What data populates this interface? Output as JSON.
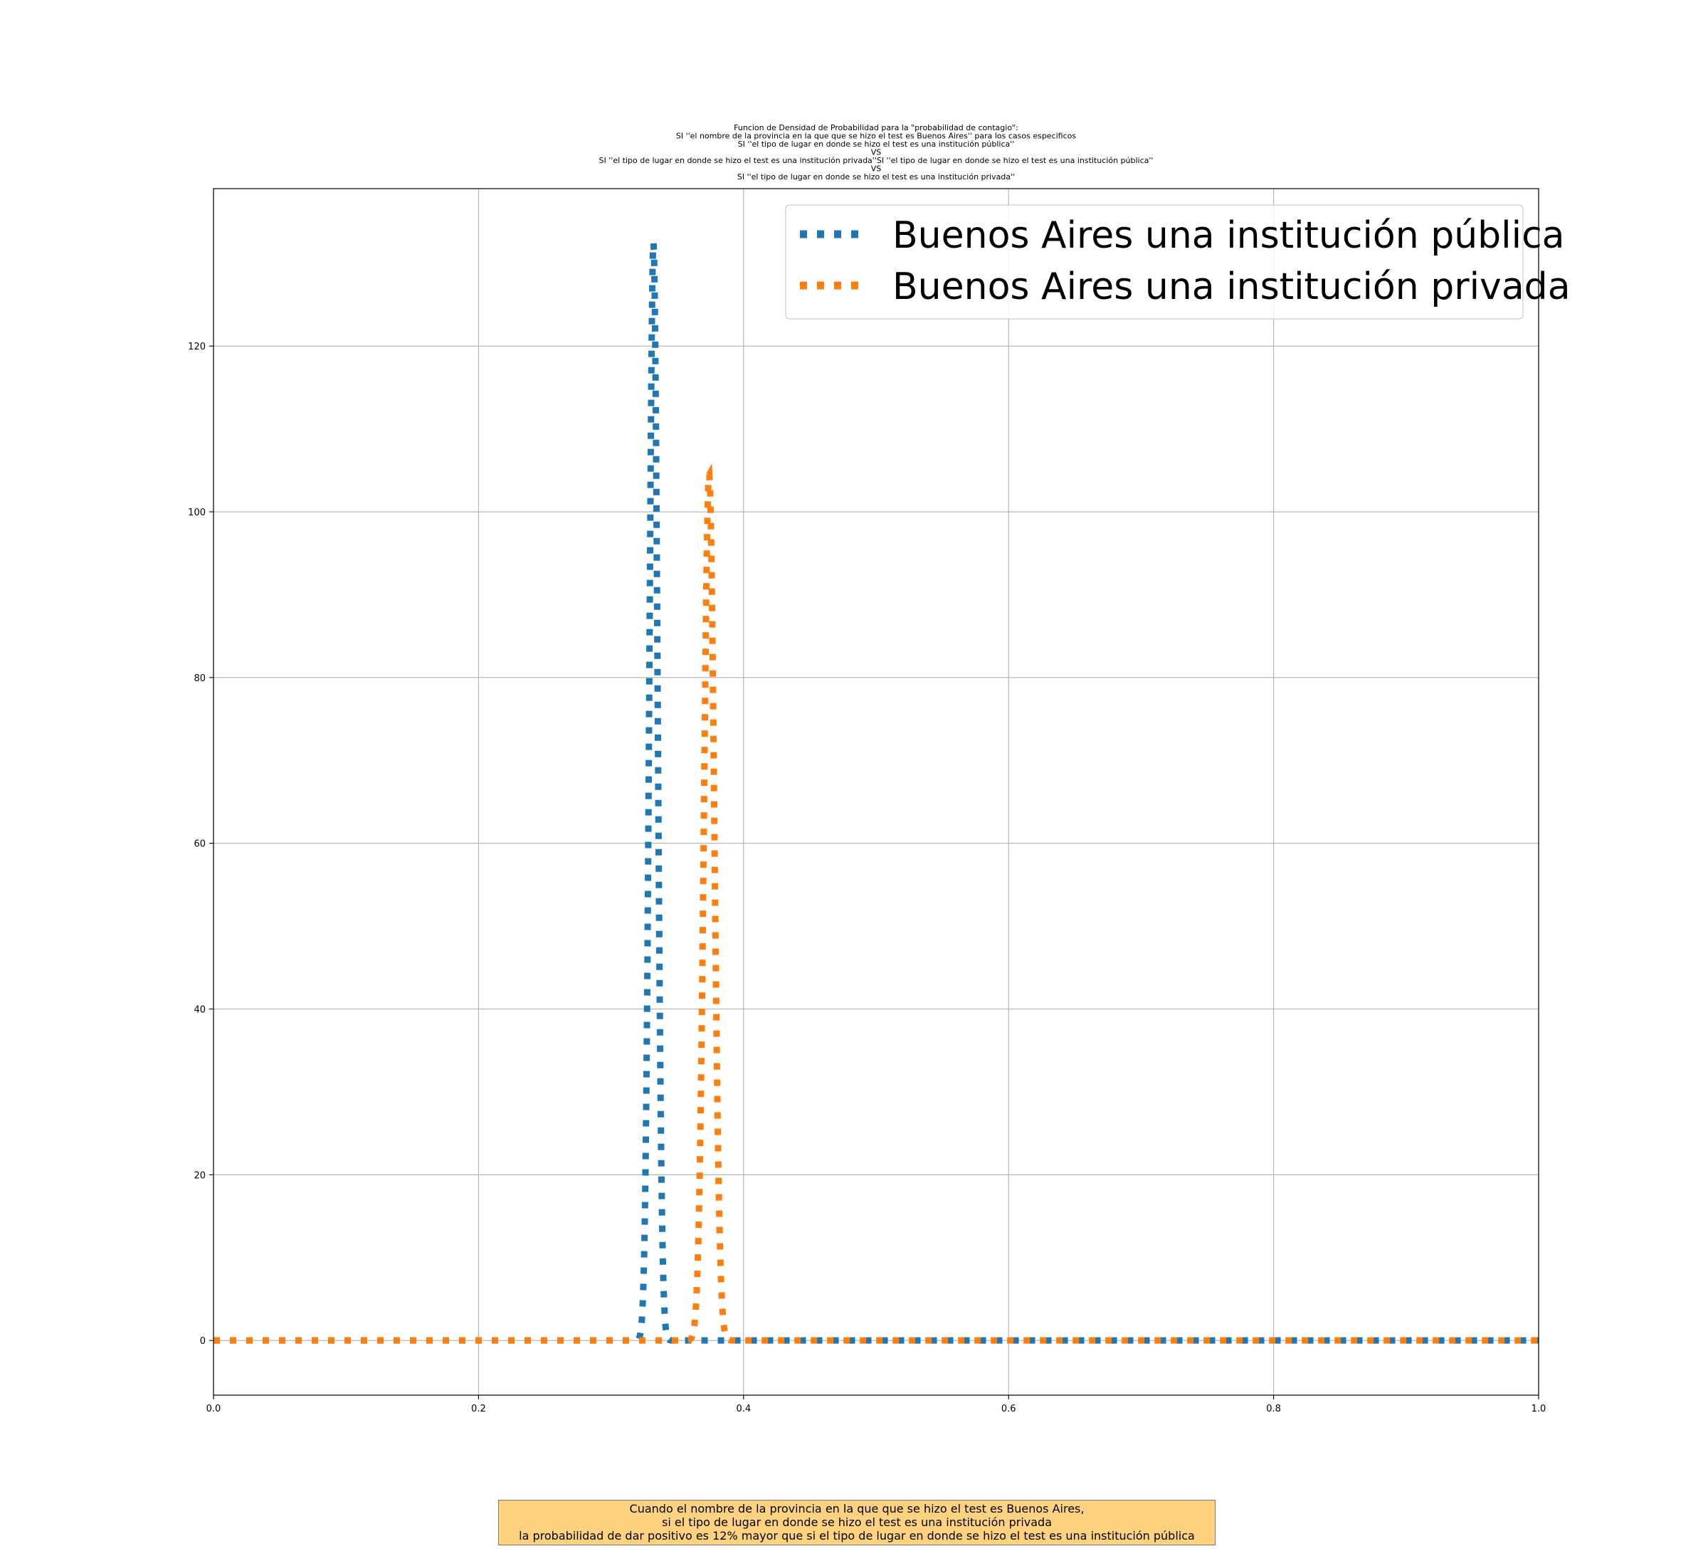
{
  "chart_data": {
    "type": "line",
    "title_lines": [
      "Funcion de Densidad de Probabilidad para la \"probabilidad de contagio\":",
      "SI ''el nombre de la provincia en la que que se hizo el test es Buenos Aires'' para los casos especificos",
      "SI ''el tipo de lugar en donde se hizo el test es una institución pública''",
      "VS",
      "SI ''el tipo de lugar en donde se hizo el test es una institución privada''SI ''el tipo de lugar en donde se hizo el test es una institución pública''",
      "VS",
      "SI ''el tipo de lugar en donde se hizo el test es una institución privada''"
    ],
    "xlabel": "",
    "ylabel": "",
    "xlim": [
      0.0,
      1.0
    ],
    "ylim": [
      -6.6,
      139
    ],
    "x_ticks": [
      "0.0",
      "0.2",
      "0.4",
      "0.6",
      "0.8",
      "1.0"
    ],
    "x_tick_values": [
      0.0,
      0.2,
      0.4,
      0.6,
      0.8,
      1.0
    ],
    "y_ticks": [
      "0",
      "20",
      "40",
      "60",
      "80",
      "100",
      "120"
    ],
    "y_tick_values": [
      0,
      20,
      40,
      60,
      80,
      100,
      120
    ],
    "grid": true,
    "legend_position": "upper right",
    "line_style": "dotted",
    "series": [
      {
        "name": "Buenos Aires una institución pública",
        "color": "#1f77b4",
        "peak_x": 0.332,
        "peak_y": 132.5,
        "sigma": 0.0031,
        "x": [
          0.0,
          0.05,
          0.1,
          0.15,
          0.2,
          0.25,
          0.3,
          0.31,
          0.32,
          0.324,
          0.326,
          0.328,
          0.33,
          0.332,
          0.334,
          0.336,
          0.338,
          0.34,
          0.344,
          0.35,
          0.36,
          0.4,
          0.5,
          0.6,
          0.7,
          0.8,
          0.9,
          1.0
        ],
        "y": [
          0,
          0,
          0,
          0,
          0,
          0,
          0,
          0,
          0.7,
          5.4,
          19.0,
          50.6,
          101.8,
          132.5,
          101.8,
          50.6,
          19.0,
          5.4,
          0.2,
          0,
          0,
          0,
          0,
          0,
          0,
          0,
          0,
          0
        ]
      },
      {
        "name": "Buenos Aires una institución privada",
        "color": "#ff7f0e",
        "peak_x": 0.374,
        "peak_y": 104.6,
        "sigma": 0.0039,
        "x": [
          0.0,
          0.05,
          0.1,
          0.15,
          0.2,
          0.25,
          0.3,
          0.35,
          0.36,
          0.364,
          0.366,
          0.368,
          0.37,
          0.372,
          0.374,
          0.376,
          0.378,
          0.38,
          0.382,
          0.384,
          0.388,
          0.4,
          0.5,
          0.6,
          0.7,
          0.8,
          0.9,
          1.0
        ],
        "y": [
          0,
          0,
          0,
          0,
          0,
          0,
          0,
          0,
          0.3,
          3.9,
          11.6,
          27.5,
          52.2,
          82.1,
          104.6,
          82.1,
          52.2,
          27.5,
          11.6,
          3.9,
          0.2,
          0,
          0,
          0,
          0,
          0,
          0,
          0
        ]
      }
    ]
  },
  "annotation": {
    "lines": [
      "Cuando el nombre de la provincia en la que que se hizo el test es Buenos Aires,",
      "si el tipo de lugar en donde se hizo el test es una institución privada",
      "la probabilidad de dar positivo es 12% mayor que si el tipo de lugar en donde se hizo el test es una institución pública"
    ],
    "background_color": "#ffd280"
  }
}
